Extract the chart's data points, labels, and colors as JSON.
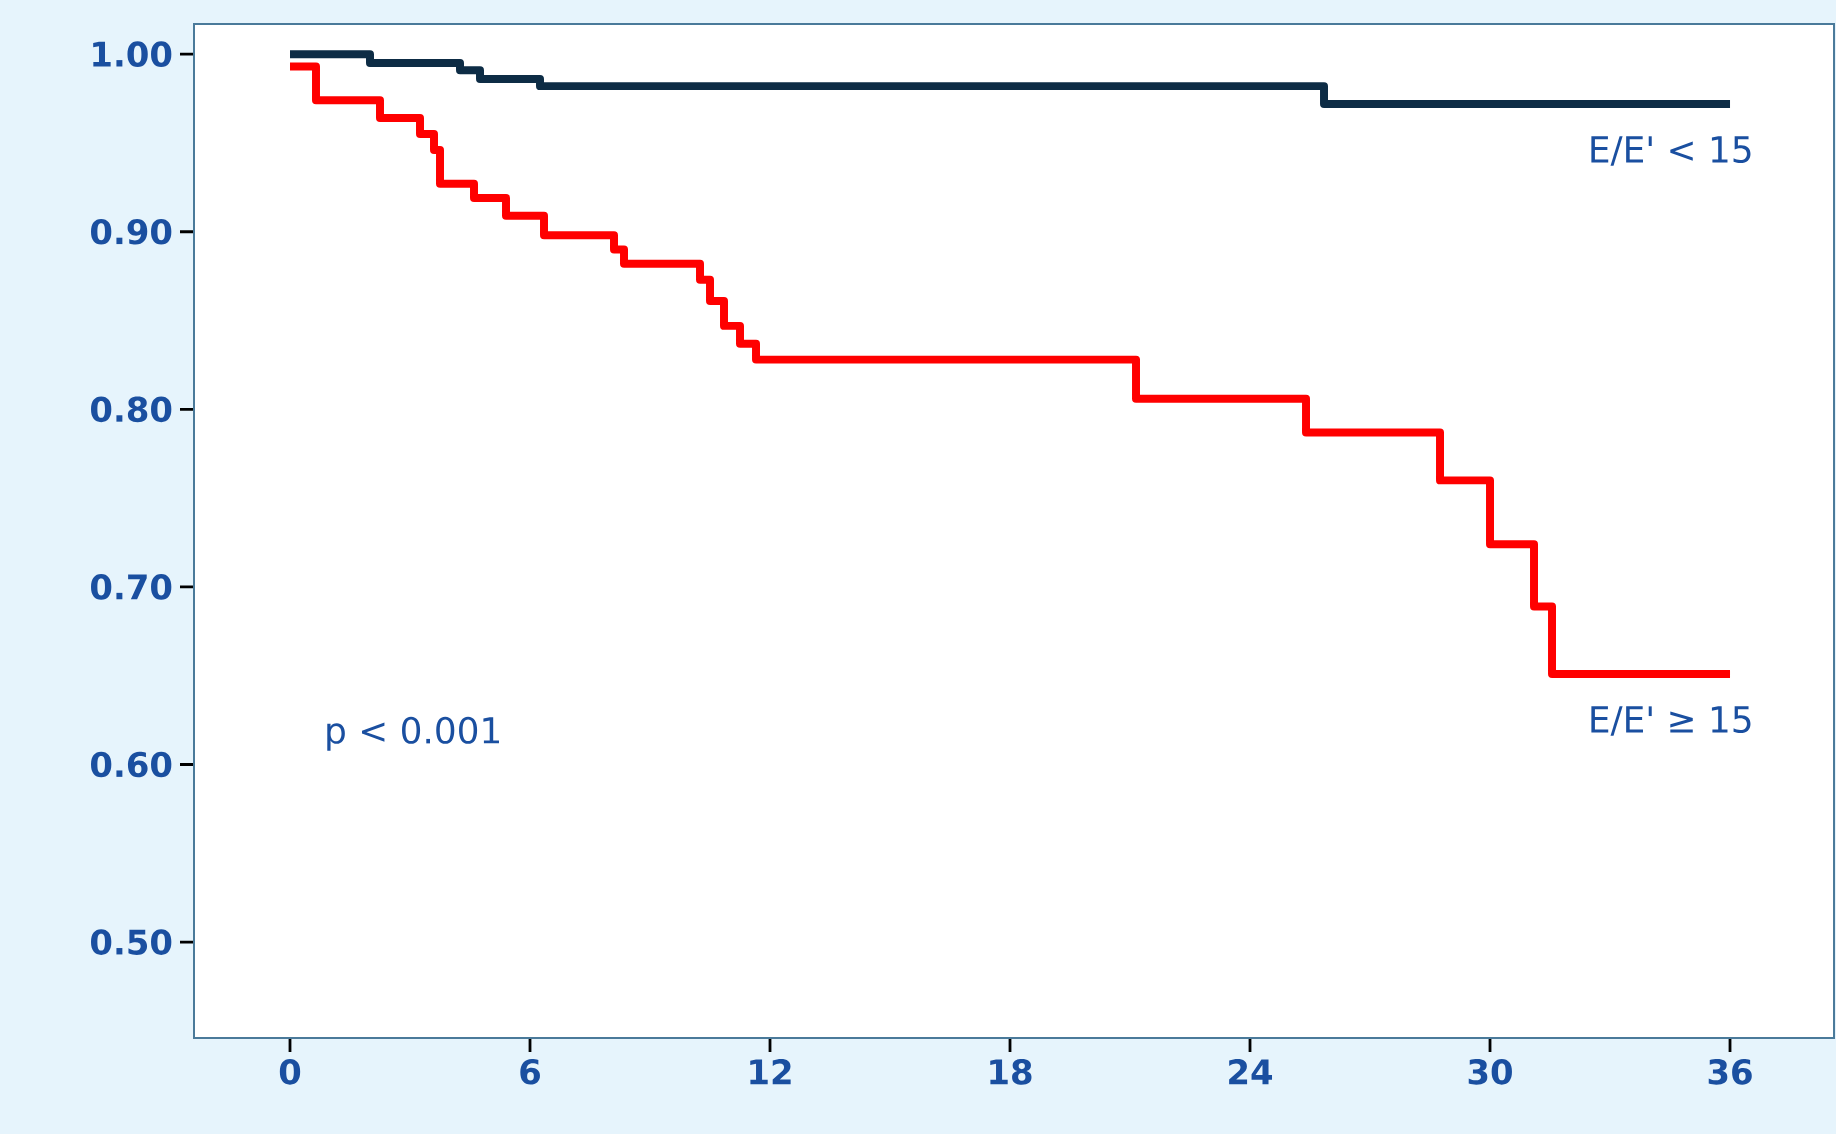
{
  "chart_data": {
    "type": "step",
    "series": [
      {
        "name": "E/E' < 15",
        "color": "#0d2c45",
        "x": [
          0,
          2.0,
          4.25,
          4.75,
          6.25,
          25.85,
          36
        ],
        "values": [
          1.0,
          0.995,
          0.991,
          0.986,
          0.982,
          0.972,
          0.972
        ]
      },
      {
        "name": "E/E' ≥ 15",
        "color": "#ff0000",
        "x": [
          0,
          0.65,
          2.25,
          3.25,
          3.6,
          3.75,
          4.6,
          5.4,
          6.35,
          8.1,
          8.35,
          10.25,
          10.5,
          10.85,
          11.25,
          11.65,
          21.15,
          25.4,
          28.75,
          30.0,
          31.1,
          31.55,
          36
        ],
        "values": [
          0.993,
          0.974,
          0.964,
          0.955,
          0.946,
          0.927,
          0.919,
          0.909,
          0.898,
          0.89,
          0.882,
          0.873,
          0.861,
          0.847,
          0.837,
          0.828,
          0.806,
          0.787,
          0.76,
          0.724,
          0.689,
          0.651,
          0.651
        ]
      }
    ],
    "xlim": [
      -2.4,
      38.6
    ],
    "ylim": [
      0.446,
      1.017
    ],
    "xticks": [
      0,
      6,
      12,
      18,
      24,
      30,
      36
    ],
    "yticks": [
      {
        "value": 1.0,
        "label": "1.00"
      },
      {
        "value": 0.9,
        "label": "0.90"
      },
      {
        "value": 0.8,
        "label": "0.80"
      },
      {
        "value": 0.7,
        "label": "0.70"
      },
      {
        "value": 0.6,
        "label": "0.60"
      },
      {
        "value": 0.5,
        "label": "0.50"
      }
    ],
    "annotations": [
      "p < 0.001"
    ],
    "grid": false,
    "marker": "none",
    "line_style": "solid"
  }
}
